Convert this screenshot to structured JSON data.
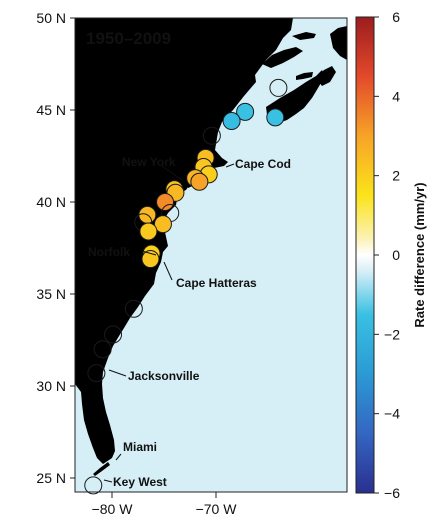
{
  "map": {
    "period_label": "1950–2009",
    "lat_ticks": [
      {
        "lat": 50,
        "label": "50 N"
      },
      {
        "lat": 45,
        "label": "45 N"
      },
      {
        "lat": 40,
        "label": "40 N"
      },
      {
        "lat": 35,
        "label": "35 N"
      },
      {
        "lat": 30,
        "label": "30 N"
      },
      {
        "lat": 25,
        "label": "25 N"
      }
    ],
    "lon_ticks": [
      {
        "lon": -80,
        "label": "−80 W"
      },
      {
        "lon": -70,
        "label": "−70 W"
      }
    ],
    "place_labels": [
      {
        "name": "New York"
      },
      {
        "name": "Cape Cod"
      },
      {
        "name": "Norfolk"
      },
      {
        "name": "Cape Hatteras"
      },
      {
        "name": "Jacksonville"
      },
      {
        "name": "Miami"
      },
      {
        "name": "Key West"
      }
    ],
    "colors": {
      "ocean": "#d6eef6",
      "land": "#6b9a6b",
      "station_outline": "#1a1a1a"
    },
    "stations": [
      {
        "lat": 46.2,
        "lon": -64.0,
        "rate": 0.0
      },
      {
        "lat": 44.6,
        "lon": -64.3,
        "rate": -1.5
      },
      {
        "lat": 44.9,
        "lon": -67.2,
        "rate": -1.5
      },
      {
        "lat": 44.4,
        "lon": -68.5,
        "rate": -1.6
      },
      {
        "lat": 43.6,
        "lon": -70.4,
        "rate": 0.0
      },
      {
        "lat": 42.4,
        "lon": -71.0,
        "rate": 2.4
      },
      {
        "lat": 41.9,
        "lon": -71.2,
        "rate": 2.2
      },
      {
        "lat": 41.5,
        "lon": -70.7,
        "rate": 2.0
      },
      {
        "lat": 41.3,
        "lon": -72.0,
        "rate": 2.6
      },
      {
        "lat": 41.1,
        "lon": -71.6,
        "rate": 3.0
      },
      {
        "lat": 40.7,
        "lon": -74.0,
        "rate": 2.2
      },
      {
        "lat": 40.5,
        "lon": -73.9,
        "rate": 2.5
      },
      {
        "lat": 40.0,
        "lon": -74.9,
        "rate": 3.4
      },
      {
        "lat": 39.4,
        "lon": -74.4,
        "rate": 0.0
      },
      {
        "lat": 39.3,
        "lon": -76.6,
        "rate": 2.5
      },
      {
        "lat": 38.9,
        "lon": -77.0,
        "rate": 0.0
      },
      {
        "lat": 38.8,
        "lon": -75.1,
        "rate": 2.4
      },
      {
        "lat": 38.4,
        "lon": -76.5,
        "rate": 2.1
      },
      {
        "lat": 37.2,
        "lon": -76.2,
        "rate": 1.9
      },
      {
        "lat": 36.9,
        "lon": -76.3,
        "rate": 2.2
      },
      {
        "lat": 34.2,
        "lon": -77.9,
        "rate": 0.0
      },
      {
        "lat": 32.8,
        "lon": -79.9,
        "rate": 0.0
      },
      {
        "lat": 32.0,
        "lon": -80.9,
        "rate": 0.0
      },
      {
        "lat": 30.7,
        "lon": -81.5,
        "rate": 0.0
      },
      {
        "lat": 24.6,
        "lon": -81.8,
        "rate": 0.0
      }
    ]
  },
  "colorbar": {
    "title": "Rate difference (mm/yr)",
    "min": -6,
    "max": 6,
    "ticks": [
      {
        "value": 6,
        "label": "6"
      },
      {
        "value": 4,
        "label": "4"
      },
      {
        "value": 2,
        "label": "2"
      },
      {
        "value": 0,
        "label": "0"
      },
      {
        "value": -2,
        "label": "−2"
      },
      {
        "value": -4,
        "label": "−4"
      },
      {
        "value": -6,
        "label": "−6"
      }
    ],
    "colormap": [
      {
        "value": -6,
        "color": "#2a2f8f"
      },
      {
        "value": -4.5,
        "color": "#3466c2"
      },
      {
        "value": -3,
        "color": "#2b9ad4"
      },
      {
        "value": -1.5,
        "color": "#39c0e3"
      },
      {
        "value": -0.4,
        "color": "#d9eff7"
      },
      {
        "value": 0,
        "color": "#ffffff"
      },
      {
        "value": 0.4,
        "color": "#fbf2b8"
      },
      {
        "value": 1.5,
        "color": "#fbe31a"
      },
      {
        "value": 3,
        "color": "#f7a327"
      },
      {
        "value": 4.5,
        "color": "#e4492a"
      },
      {
        "value": 6,
        "color": "#9c1c1f"
      }
    ]
  }
}
